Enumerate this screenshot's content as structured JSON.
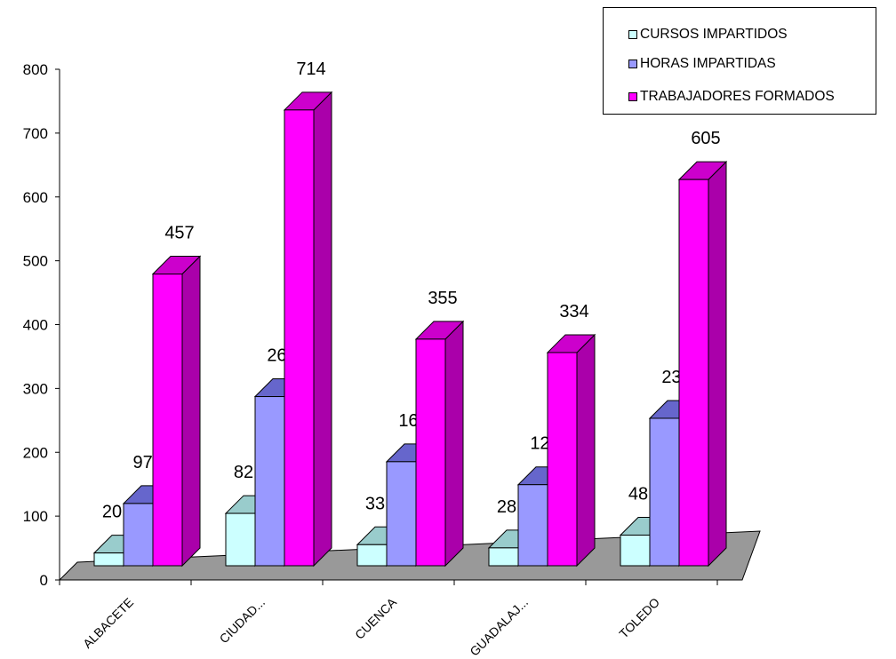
{
  "chart_data": {
    "type": "bar",
    "categories": [
      "ALBACETE",
      "CIUDAD...",
      "CUENCA",
      "GUADALAJ...",
      "TOLEDO"
    ],
    "series": [
      {
        "name": "CURSOS IMPARTIDOS",
        "values": [
          20,
          82,
          33,
          28,
          48
        ],
        "labels": [
          "20",
          "82",
          "33",
          "28",
          "48"
        ],
        "color": "#CCFFFF",
        "top_color": "#99CCCC",
        "side_color": "#99CCCC"
      },
      {
        "name": "HORAS IMPARTIDAS",
        "values": [
          97.5,
          265,
          163,
          127,
          231
        ],
        "labels": [
          "97,5",
          "265",
          "163",
          "127",
          "231"
        ],
        "color": "#9999FF",
        "top_color": "#6666CC",
        "side_color": "#6666CC"
      },
      {
        "name": "TRABAJADORES FORMADOS",
        "values": [
          457,
          714,
          355,
          334,
          605
        ],
        "labels": [
          "457",
          "714",
          "355",
          "334",
          "605"
        ],
        "color": "#FF00FF",
        "top_color": "#CC00CC",
        "side_color": "#AA00AA"
      }
    ],
    "ylim": [
      0,
      800
    ],
    "yticks": [
      "0",
      "100",
      "200",
      "300",
      "400",
      "500",
      "600",
      "700",
      "800"
    ],
    "legend_position": "top-right",
    "floor_color": "#999999",
    "grid": false
  }
}
